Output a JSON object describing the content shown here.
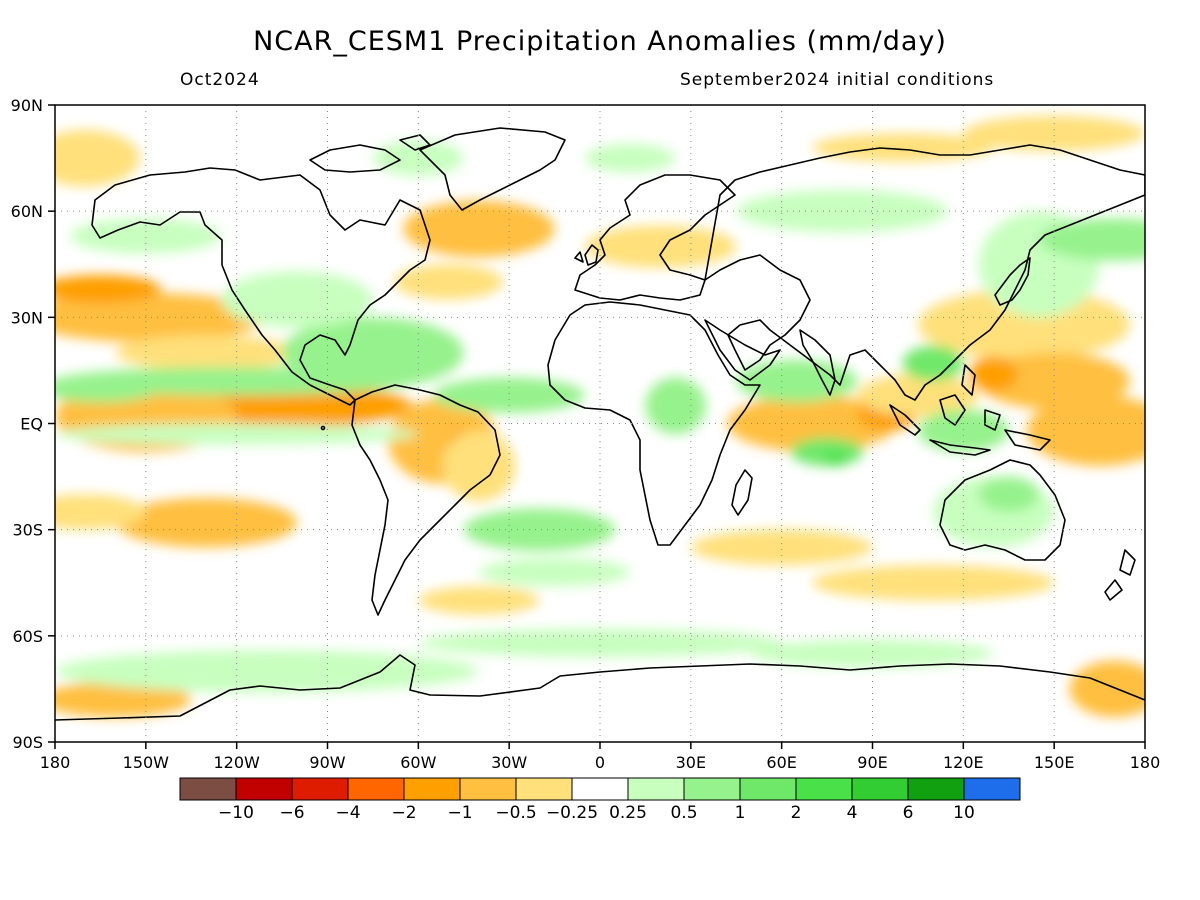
{
  "header": {
    "title": "NCAR_CESM1 Precipitation Anomalies (mm/day)",
    "valid_month": "Oct2024",
    "initial_conditions": "September2024 initial conditions"
  },
  "map": {
    "projection": "cylindrical equidistant",
    "lon_range": [
      -180,
      180
    ],
    "lat_range": [
      -90,
      90
    ],
    "lat_ticks": [
      {
        "value": 90,
        "label": "90N"
      },
      {
        "value": 60,
        "label": "60N"
      },
      {
        "value": 30,
        "label": "30N"
      },
      {
        "value": 0,
        "label": "EQ"
      },
      {
        "value": -30,
        "label": "30S"
      },
      {
        "value": -60,
        "label": "60S"
      },
      {
        "value": -90,
        "label": "90S"
      }
    ],
    "lon_ticks": [
      {
        "value": -180,
        "label": "180"
      },
      {
        "value": -150,
        "label": "150W"
      },
      {
        "value": -120,
        "label": "120W"
      },
      {
        "value": -90,
        "label": "90W"
      },
      {
        "value": -60,
        "label": "60W"
      },
      {
        "value": -30,
        "label": "30W"
      },
      {
        "value": 0,
        "label": "0"
      },
      {
        "value": 30,
        "label": "30E"
      },
      {
        "value": 60,
        "label": "60E"
      },
      {
        "value": 90,
        "label": "90E"
      },
      {
        "value": 120,
        "label": "120E"
      },
      {
        "value": 150,
        "label": "150E"
      },
      {
        "value": 180,
        "label": "180"
      }
    ],
    "grid": "dotted every 30 degrees",
    "anomaly_blobs": [
      {
        "lon": -130,
        "lat": 4,
        "rx": 48,
        "ry": 4,
        "level": 3
      },
      {
        "lon": -145,
        "lat": 5,
        "rx": 30,
        "ry": 2.5,
        "level": 1
      },
      {
        "lon": -120,
        "lat": 5,
        "rx": 58,
        "ry": 7,
        "level": 4
      },
      {
        "lon": -150,
        "lat": 2,
        "rx": 30,
        "ry": 10,
        "level": 5
      },
      {
        "lon": 165,
        "lat": -2,
        "rx": 16,
        "ry": 6,
        "level": 4
      },
      {
        "lon": 165,
        "lat": -2,
        "rx": 24,
        "ry": 10,
        "level": 5
      },
      {
        "lon": 60,
        "lat": 0,
        "rx": 12,
        "ry": 5,
        "level": 4
      },
      {
        "lon": 70,
        "lat": 0,
        "rx": 28,
        "ry": 8,
        "level": 5
      },
      {
        "lon": 95,
        "lat": 3,
        "rx": 10,
        "ry": 5,
        "level": 4
      },
      {
        "lon": 105,
        "lat": 8,
        "rx": 20,
        "ry": 6,
        "level": 6
      },
      {
        "lon": -52,
        "lat": -5,
        "rx": 18,
        "ry": 12,
        "level": 5
      },
      {
        "lon": -45,
        "lat": -6,
        "rx": 5,
        "ry": 4,
        "level": 4
      },
      {
        "lon": -40,
        "lat": -12,
        "rx": 12,
        "ry": 10,
        "level": 6
      },
      {
        "lon": -150,
        "lat": 30,
        "rx": 40,
        "ry": 7,
        "level": 5
      },
      {
        "lon": -165,
        "lat": 38,
        "rx": 20,
        "ry": 4,
        "level": 4
      },
      {
        "lon": -130,
        "lat": 20,
        "rx": 30,
        "ry": 5,
        "level": 6
      },
      {
        "lon": 140,
        "lat": 28,
        "rx": 35,
        "ry": 10,
        "level": 6
      },
      {
        "lon": 150,
        "lat": 12,
        "rx": 25,
        "ry": 8,
        "level": 5
      },
      {
        "lon": 130,
        "lat": 14,
        "rx": 8,
        "ry": 5,
        "level": 4
      },
      {
        "lon": -40,
        "lat": 55,
        "rx": 25,
        "ry": 8,
        "level": 5
      },
      {
        "lon": -50,
        "lat": 40,
        "rx": 18,
        "ry": 5,
        "level": 6
      },
      {
        "lon": 20,
        "lat": 50,
        "rx": 25,
        "ry": 6,
        "level": 6
      },
      {
        "lon": -130,
        "lat": -28,
        "rx": 30,
        "ry": 7,
        "level": 5
      },
      {
        "lon": -170,
        "lat": -25,
        "rx": 20,
        "ry": 5,
        "level": 6
      },
      {
        "lon": -40,
        "lat": -50,
        "rx": 20,
        "ry": 4,
        "level": 6
      },
      {
        "lon": 60,
        "lat": -35,
        "rx": 30,
        "ry": 5,
        "level": 6
      },
      {
        "lon": 110,
        "lat": -45,
        "rx": 40,
        "ry": 5,
        "level": 6
      },
      {
        "lon": -160,
        "lat": -78,
        "rx": 25,
        "ry": 5,
        "level": 5
      },
      {
        "lon": 170,
        "lat": -75,
        "rx": 15,
        "ry": 8,
        "level": 5
      },
      {
        "lon": -170,
        "lat": 75,
        "rx": 18,
        "ry": 8,
        "level": 6
      },
      {
        "lon": 100,
        "lat": 78,
        "rx": 30,
        "ry": 4,
        "level": 6
      },
      {
        "lon": 150,
        "lat": 82,
        "rx": 30,
        "ry": 5,
        "level": 6
      },
      {
        "lon": -120,
        "lat": 12,
        "rx": 60,
        "ry": 4,
        "level": 9
      },
      {
        "lon": -120,
        "lat": -3,
        "rx": 60,
        "ry": 3,
        "level": 8
      },
      {
        "lon": -30,
        "lat": 8,
        "rx": 25,
        "ry": 5,
        "level": 9
      },
      {
        "lon": 75,
        "lat": -8,
        "rx": 12,
        "ry": 4,
        "level": 10
      },
      {
        "lon": 78,
        "lat": -10,
        "rx": 4,
        "ry": 2,
        "level": 11
      },
      {
        "lon": 65,
        "lat": 12,
        "rx": 20,
        "ry": 6,
        "level": 9
      },
      {
        "lon": 110,
        "lat": 17,
        "rx": 10,
        "ry": 5,
        "level": 10
      },
      {
        "lon": 120,
        "lat": -2,
        "rx": 15,
        "ry": 6,
        "level": 9
      },
      {
        "lon": 130,
        "lat": -25,
        "rx": 20,
        "ry": 10,
        "level": 8
      },
      {
        "lon": 135,
        "lat": -20,
        "rx": 10,
        "ry": 5,
        "level": 9
      },
      {
        "lon": 145,
        "lat": 45,
        "rx": 20,
        "ry": 15,
        "level": 8
      },
      {
        "lon": 80,
        "lat": 60,
        "rx": 35,
        "ry": 6,
        "level": 8
      },
      {
        "lon": -75,
        "lat": 20,
        "rx": 30,
        "ry": 10,
        "level": 9
      },
      {
        "lon": -100,
        "lat": 35,
        "rx": 25,
        "ry": 8,
        "level": 8
      },
      {
        "lon": -165,
        "lat": 10,
        "rx": 20,
        "ry": 4,
        "level": 9
      },
      {
        "lon": -20,
        "lat": -30,
        "rx": 25,
        "ry": 6,
        "level": 9
      },
      {
        "lon": -15,
        "lat": -42,
        "rx": 25,
        "ry": 4,
        "level": 8
      },
      {
        "lon": -110,
        "lat": -70,
        "rx": 70,
        "ry": 6,
        "level": 8
      },
      {
        "lon": 0,
        "lat": -62,
        "rx": 60,
        "ry": 4,
        "level": 8
      },
      {
        "lon": 90,
        "lat": -65,
        "rx": 40,
        "ry": 4,
        "level": 8
      },
      {
        "lon": -150,
        "lat": 53,
        "rx": 25,
        "ry": 5,
        "level": 8
      },
      {
        "lon": 170,
        "lat": 52,
        "rx": 25,
        "ry": 6,
        "level": 9
      },
      {
        "lon": 25,
        "lat": 5,
        "rx": 10,
        "ry": 8,
        "level": 9
      },
      {
        "lon": -60,
        "lat": 75,
        "rx": 15,
        "ry": 5,
        "level": 8
      },
      {
        "lon": 10,
        "lat": 75,
        "rx": 15,
        "ry": 4,
        "level": 8
      }
    ]
  },
  "colorbar": {
    "colors": [
      "#7b4d43",
      "#c10000",
      "#dd1c00",
      "#ff6600",
      "#ff9f00",
      "#ffbf40",
      "#ffe07a",
      "#ffffff",
      "#c8ffbf",
      "#96f28c",
      "#6fe86a",
      "#4ae04a",
      "#32cd32",
      "#10a010",
      "#1e6eeb"
    ],
    "labels": [
      "−10",
      "−6",
      "−4",
      "−2",
      "−1",
      "−0.5",
      "−0.25",
      "0.25",
      "0.5",
      "1",
      "2",
      "4",
      "6",
      "10"
    ]
  }
}
